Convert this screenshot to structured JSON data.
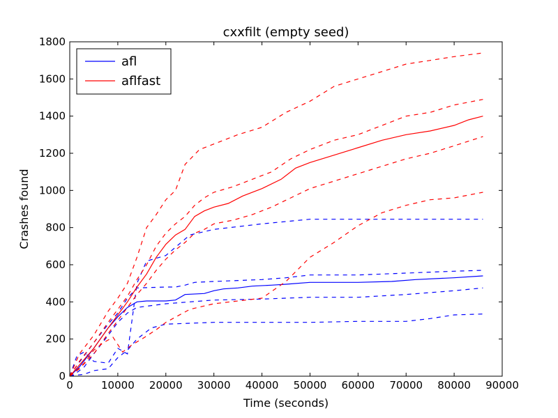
{
  "chart_data": {
    "type": "line",
    "title": "cxxfilt (empty seed)",
    "xlabel": "Time (seconds)",
    "ylabel": "Crashes found",
    "xlim": [
      0,
      90000
    ],
    "ylim": [
      0,
      1800
    ],
    "xticks": [
      0,
      10000,
      20000,
      30000,
      40000,
      50000,
      60000,
      70000,
      80000,
      90000
    ],
    "yticks": [
      0,
      200,
      400,
      600,
      800,
      1000,
      1200,
      1400,
      1600,
      1800
    ],
    "grid": false,
    "legend": {
      "position": "top-left",
      "entries": [
        "afl",
        "aflfast"
      ]
    },
    "colors": {
      "afl": "#0000ff",
      "aflfast": "#ff0000"
    },
    "series": [
      {
        "name": "afl",
        "style": "solid",
        "x": [
          0,
          2000,
          5000,
          8000,
          10000,
          12000,
          14000,
          16000,
          20000,
          22000,
          24000,
          28000,
          30000,
          32000,
          35000,
          38000,
          42000,
          45000,
          50000,
          60000,
          67000,
          72000,
          80000,
          86000
        ],
        "y": [
          0,
          50,
          150,
          260,
          320,
          370,
          400,
          405,
          405,
          410,
          440,
          445,
          460,
          470,
          475,
          485,
          490,
          495,
          505,
          505,
          510,
          520,
          530,
          540
        ]
      },
      {
        "style": "dashed",
        "x": [
          0,
          1000,
          3000,
          5000,
          8000,
          10000,
          12000,
          14000,
          20000,
          22000,
          24000,
          26000,
          30000,
          40000,
          45000,
          50000,
          60000,
          70000,
          80000,
          86000
        ],
        "y": [
          0,
          40,
          110,
          180,
          280,
          340,
          420,
          475,
          480,
          480,
          490,
          505,
          510,
          520,
          530,
          545,
          545,
          555,
          565,
          570
        ]
      },
      {
        "style": "dashed",
        "x": [
          0,
          1000,
          3000,
          5000,
          8000,
          10000,
          12000,
          14000,
          20000,
          25000,
          30000,
          40000,
          50000,
          60000,
          70000,
          80000,
          86000
        ],
        "y": [
          0,
          10,
          50,
          120,
          220,
          290,
          340,
          370,
          390,
          400,
          410,
          415,
          425,
          425,
          440,
          460,
          475
        ]
      },
      {
        "style": "dashed",
        "x": [
          0,
          1500,
          3000,
          5000,
          8000,
          10000,
          12000,
          14000,
          16000,
          20000,
          25000,
          30000,
          40000,
          50000,
          60000,
          70000,
          78000,
          86000
        ],
        "y": [
          0,
          110,
          130,
          80,
          70,
          150,
          120,
          500,
          620,
          650,
          760,
          790,
          820,
          845,
          845,
          845,
          845,
          845
        ]
      },
      {
        "style": "dashed",
        "x": [
          0,
          1000,
          3000,
          5000,
          8000,
          10000,
          12000,
          14000,
          17000,
          20000,
          25000,
          30000,
          40000,
          50000,
          60000,
          70000,
          75000,
          80000,
          86000
        ],
        "y": [
          0,
          5,
          10,
          30,
          40,
          100,
          140,
          200,
          260,
          280,
          285,
          290,
          290,
          290,
          295,
          295,
          310,
          330,
          335
        ]
      },
      {
        "name": "aflfast",
        "style": "solid",
        "x": [
          0,
          2000,
          5000,
          8000,
          10000,
          12000,
          14000,
          16000,
          18000,
          20000,
          22000,
          24000,
          26000,
          28000,
          30000,
          33000,
          36000,
          40000,
          44000,
          47000,
          50000,
          55000,
          60000,
          65000,
          70000,
          75000,
          80000,
          83000,
          86000
        ],
        "y": [
          0,
          60,
          150,
          260,
          330,
          400,
          480,
          550,
          640,
          710,
          760,
          790,
          860,
          890,
          910,
          930,
          970,
          1010,
          1060,
          1120,
          1150,
          1190,
          1230,
          1270,
          1300,
          1320,
          1350,
          1380,
          1400
        ]
      },
      {
        "style": "dashed",
        "x": [
          0,
          2000,
          5000,
          8000,
          10000,
          12000,
          14000,
          16000,
          18000,
          20000,
          22000,
          24000,
          26000,
          28000,
          30000,
          34000,
          38000,
          42000,
          46000,
          50000,
          55000,
          60000,
          65000,
          70000,
          75000,
          80000,
          86000
        ],
        "y": [
          0,
          80,
          180,
          290,
          360,
          430,
          520,
          600,
          700,
          770,
          820,
          860,
          920,
          960,
          990,
          1020,
          1060,
          1100,
          1170,
          1220,
          1270,
          1300,
          1350,
          1400,
          1420,
          1460,
          1490
        ]
      },
      {
        "style": "dashed",
        "x": [
          0,
          2000,
          5000,
          8000,
          10000,
          12000,
          14000,
          16000,
          18000,
          20000,
          22000,
          24000,
          26000,
          28000,
          30000,
          34000,
          38000,
          42000,
          46000,
          50000,
          55000,
          60000,
          65000,
          70000,
          75000,
          80000,
          86000
        ],
        "y": [
          0,
          40,
          120,
          230,
          300,
          370,
          440,
          500,
          570,
          630,
          680,
          720,
          770,
          790,
          820,
          840,
          870,
          910,
          960,
          1010,
          1050,
          1090,
          1130,
          1170,
          1200,
          1240,
          1290
        ]
      },
      {
        "style": "dashed",
        "x": [
          0,
          2000,
          5000,
          8000,
          10000,
          12000,
          14000,
          16000,
          18000,
          20000,
          22000,
          24000,
          27000,
          30000,
          35000,
          40000,
          45000,
          50000,
          55000,
          60000,
          65000,
          70000,
          75000,
          80000,
          86000
        ],
        "y": [
          0,
          120,
          220,
          350,
          420,
          500,
          640,
          800,
          870,
          950,
          1000,
          1140,
          1220,
          1250,
          1300,
          1340,
          1420,
          1480,
          1560,
          1600,
          1640,
          1680,
          1700,
          1720,
          1740
        ]
      },
      {
        "style": "dashed",
        "x": [
          0,
          1000,
          3000,
          5000,
          7000,
          9000,
          11000,
          13000,
          15000,
          18000,
          20000,
          25000,
          30000,
          40000,
          45000,
          50000,
          55000,
          60000,
          65000,
          70000,
          75000,
          80000,
          86000
        ],
        "y": [
          0,
          20,
          70,
          140,
          180,
          210,
          130,
          170,
          200,
          250,
          290,
          360,
          390,
          420,
          510,
          640,
          720,
          810,
          880,
          920,
          950,
          960,
          990
        ]
      }
    ]
  }
}
